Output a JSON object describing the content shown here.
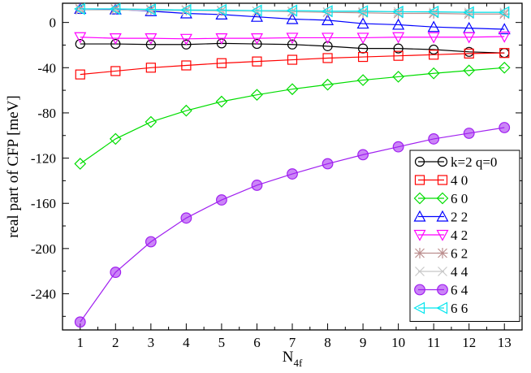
{
  "chart_data": {
    "type": "line",
    "title": "",
    "xlabel": "N",
    "xlabel_sub": "4f",
    "ylabel": "real part of CFP  [meV]",
    "xlim": [
      0.5,
      13.5
    ],
    "ylim": [
      -272,
      17
    ],
    "x_ticks": [
      1,
      2,
      3,
      4,
      5,
      6,
      7,
      8,
      9,
      10,
      11,
      12,
      13
    ],
    "y_ticks": [
      0,
      -40,
      -80,
      -120,
      -160,
      -200,
      -240
    ],
    "grid": false,
    "legend_position": "bottom-right",
    "x": [
      1,
      2,
      3,
      4,
      5,
      6,
      7,
      8,
      9,
      10,
      11,
      12,
      13
    ],
    "series": [
      {
        "name": "k=2 q=0",
        "color": "#000000",
        "marker": "circle",
        "values": [
          -19,
          -19,
          -19.5,
          -19.5,
          -18.5,
          -19,
          -19.5,
          -21,
          -23,
          -23,
          -24,
          -26,
          -27
        ]
      },
      {
        "name": "4 0",
        "color": "#ff0000",
        "marker": "square",
        "values": [
          -46,
          -43,
          -40,
          -38,
          -36,
          -34.5,
          -33,
          -31.5,
          -30.5,
          -29.5,
          -28.5,
          -27.5,
          -27
        ]
      },
      {
        "name": "6 0",
        "color": "#00dd00",
        "marker": "diamond",
        "values": [
          -125,
          -103,
          -88,
          -78,
          -70,
          -64,
          -59,
          -55,
          -51,
          -48,
          -45,
          -42.5,
          -40
        ]
      },
      {
        "name": "2 2",
        "color": "#0000ff",
        "marker": "triangle-up",
        "values": [
          12,
          11.5,
          10,
          8,
          7,
          5,
          3,
          2,
          -1,
          -2,
          -4,
          -5,
          -6
        ]
      },
      {
        "name": "4 2",
        "color": "#ff00ff",
        "marker": "triangle-down",
        "values": [
          -13,
          -14,
          -14,
          -14.5,
          -14,
          -14,
          -13.5,
          -13.5,
          -13.5,
          -13,
          -13,
          -13,
          -12.5
        ]
      },
      {
        "name": "6 2",
        "color": "#bc8f8f",
        "marker": "asterisk",
        "values": [
          12,
          12,
          11.5,
          11,
          10.5,
          10,
          9.5,
          9,
          8.5,
          8,
          8,
          7.5,
          7.5
        ]
      },
      {
        "name": "4 4",
        "color": "#c8c8c8",
        "marker": "cross",
        "values": [
          11,
          11,
          10.5,
          10.5,
          10,
          10,
          10,
          9.5,
          9.5,
          9.5,
          9,
          9,
          9
        ]
      },
      {
        "name": "6 4",
        "color": "#a020f0",
        "marker": "circle-filled",
        "values": [
          -265,
          -221,
          -194,
          -173,
          -157,
          -144,
          -134,
          -125,
          -117,
          -110,
          -103,
          -98,
          -93
        ]
      },
      {
        "name": "6 6",
        "color": "#00e5ee",
        "marker": "triangle-left",
        "values": [
          12,
          12,
          11.5,
          11,
          11,
          10.5,
          10.5,
          10,
          10,
          9.5,
          9.5,
          9,
          9
        ]
      }
    ]
  }
}
